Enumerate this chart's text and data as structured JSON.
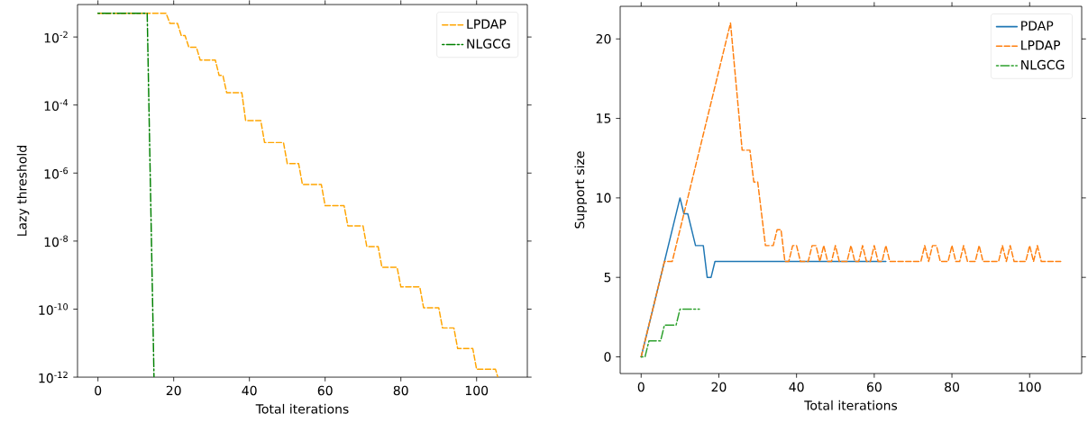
{
  "chart_data": [
    {
      "type": "line",
      "ylabel": "Lazy threshold",
      "xlabel": "Total iterations",
      "log": "y",
      "xlim": [
        -5.4,
        113.4
      ],
      "ylim": [
        1e-12,
        0.09
      ],
      "xticks": [
        0,
        20,
        40,
        60,
        80,
        100
      ],
      "yticks": [
        {
          "value": 0.01,
          "label": "10$^{-2}$"
        },
        {
          "value": 0.0001,
          "label": "10$^{-4}$"
        },
        {
          "value": 1e-06,
          "label": "10$^{-6}$"
        },
        {
          "value": 1e-08,
          "label": "10$^{-8}$"
        },
        {
          "value": 1e-10,
          "label": "10$^{-10}$"
        },
        {
          "value": 1e-12,
          "label": "10$^{-12}$"
        }
      ],
      "legend": "top right",
      "marker": "none",
      "series": [
        {
          "name": "LPDAP",
          "color": "#ffa500",
          "line_style": "dashed",
          "x": [
            0,
            18,
            19,
            21,
            22,
            23,
            24,
            26,
            27,
            31,
            32,
            33,
            34,
            38,
            39,
            43,
            44,
            49,
            50,
            53,
            54,
            59,
            60,
            65,
            66,
            70,
            71,
            74,
            75,
            79,
            80,
            85,
            86,
            90,
            91,
            94,
            95,
            99,
            100,
            105,
            105.6
          ],
          "values": [
            0.05,
            0.05,
            0.025,
            0.025,
            0.011,
            0.011,
            0.005,
            0.005,
            0.0021,
            0.0021,
            0.00074,
            0.00074,
            0.00023,
            0.00023,
            3.5e-05,
            3.5e-05,
            7.9e-06,
            7.9e-06,
            1.9e-06,
            1.9e-06,
            4.6e-07,
            4.6e-07,
            1.1e-07,
            1.1e-07,
            2.8e-08,
            2.8e-08,
            6.9e-09,
            6.9e-09,
            1.7e-09,
            1.7e-09,
            4.5e-10,
            4.5e-10,
            1.1e-10,
            1.1e-10,
            2.8e-11,
            2.8e-11,
            6.9e-12,
            6.9e-12,
            1.7e-12,
            1.7e-12,
            1e-12
          ]
        },
        {
          "name": "NLGCG",
          "color": "#008000",
          "line_style": "dashdot",
          "x": [
            0,
            13,
            14.8
          ],
          "values": [
            0.05,
            0.05,
            1e-12
          ]
        }
      ]
    },
    {
      "type": "line",
      "ylabel": "Support size",
      "xlabel": "Total iterations",
      "xlim": [
        -5.4,
        113.4
      ],
      "ylim": [
        -1.05,
        22.05
      ],
      "xticks": [
        0,
        20,
        40,
        60,
        80,
        100
      ],
      "yticks": [
        0,
        5,
        10,
        15,
        20
      ],
      "legend": "top right",
      "marker": "none",
      "series": [
        {
          "name": "PDAP",
          "color": "#1f77b4",
          "line_style": "solid",
          "x": [
            0,
            10,
            11,
            12,
            14,
            16,
            17,
            18,
            19,
            63
          ],
          "values": [
            0,
            10,
            9,
            9,
            7,
            7,
            5,
            5,
            6,
            6
          ]
        },
        {
          "name": "LPDAP",
          "color": "#ff7f0e",
          "line_style": "dashed",
          "x": [
            0,
            5,
            6,
            8,
            23,
            26,
            28,
            29,
            30,
            32,
            34,
            35,
            36,
            37,
            38,
            39,
            40,
            41,
            43,
            44,
            45,
            46,
            47,
            48,
            49,
            50,
            51,
            53,
            54,
            55,
            56,
            57,
            58,
            59,
            60,
            61,
            62,
            63,
            64,
            72,
            73,
            74,
            75,
            76,
            77,
            79,
            80,
            81,
            82,
            83,
            84,
            86,
            87,
            88,
            92,
            93,
            94,
            95,
            96,
            99,
            100,
            101,
            102,
            103,
            108
          ],
          "values": [
            0,
            5,
            6,
            6,
            21,
            13,
            13,
            11,
            11,
            7,
            7,
            8,
            8,
            6,
            6,
            7,
            7,
            6,
            6,
            7,
            7,
            6,
            7,
            6,
            6,
            7,
            6,
            6,
            7,
            6,
            6,
            7,
            6,
            6,
            7,
            6,
            6,
            7,
            6,
            6,
            7,
            6,
            7,
            7,
            6,
            6,
            7,
            6,
            6,
            7,
            6,
            6,
            7,
            6,
            6,
            7,
            6,
            7,
            6,
            6,
            7,
            6,
            7,
            6,
            6
          ]
        },
        {
          "name": "NLGCG",
          "color": "#2ca02c",
          "line_style": "dashdot",
          "x": [
            0,
            1,
            2,
            5,
            6,
            9,
            10,
            15
          ],
          "values": [
            0,
            0,
            1,
            1,
            2,
            2,
            3,
            3
          ]
        }
      ]
    }
  ]
}
